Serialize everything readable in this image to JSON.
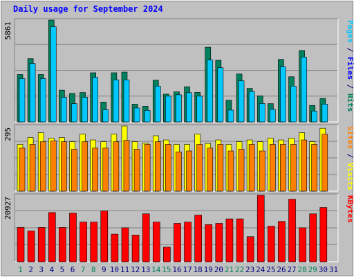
{
  "title": "Daily usage for September 2024",
  "colors": {
    "background": "#c0c0c0",
    "title": "#0000ff",
    "hits": "#00805c",
    "files": "#00c8ff",
    "pages": "#00c8ff",
    "visits": "#ffff00",
    "sites": "#ff8000",
    "kbytes": "#ff0000",
    "day_weekday": "#000080",
    "day_weekend": "#00805c"
  },
  "chart_data": [
    {
      "type": "bar",
      "name": "hits-files-pages",
      "ymax_label": "5861",
      "ylim": [
        0,
        5861
      ],
      "right_label_parts": [
        {
          "text": "Pages",
          "color": "#00c8ff"
        },
        {
          "text": " / ",
          "color": "#000080"
        },
        {
          "text": "Files",
          "color": "#0000ff"
        },
        {
          "text": " / ",
          "color": "#000080"
        },
        {
          "text": "Hits",
          "color": "#00805c"
        }
      ],
      "categories": [
        1,
        2,
        3,
        4,
        5,
        6,
        7,
        8,
        9,
        10,
        11,
        12,
        13,
        14,
        15,
        16,
        17,
        18,
        19,
        20,
        21,
        22,
        23,
        24,
        25,
        26,
        27,
        28,
        29,
        30
      ],
      "series": [
        {
          "name": "Hits",
          "values": [
            2730,
            3640,
            2730,
            5861,
            1830,
            1640,
            1690,
            2830,
            1140,
            2830,
            2870,
            1020,
            900,
            2400,
            1600,
            1730,
            2020,
            1700,
            4300,
            3550,
            1250,
            2760,
            1930,
            1500,
            1050,
            3600,
            2600,
            4110,
            950,
            1350
          ]
        },
        {
          "name": "Files",
          "values": [
            2490,
            3360,
            2490,
            5480,
            1420,
            1050,
            1420,
            2560,
            700,
            2420,
            2420,
            800,
            660,
            2060,
            1480,
            1560,
            1680,
            1480,
            3560,
            3120,
            680,
            2370,
            1750,
            1060,
            720,
            3170,
            2060,
            3730,
            620,
            1020
          ]
        }
      ]
    },
    {
      "type": "bar",
      "name": "visits-sites",
      "ymax_label": "295",
      "ylim": [
        0,
        295
      ],
      "right_label_parts": [
        {
          "text": "Sites",
          "color": "#ff8000"
        },
        {
          "text": " / ",
          "color": "#000080"
        },
        {
          "text": "Visits",
          "color": "#ffff00"
        }
      ],
      "categories": [
        1,
        2,
        3,
        4,
        5,
        6,
        7,
        8,
        9,
        10,
        11,
        12,
        13,
        14,
        15,
        16,
        17,
        18,
        19,
        20,
        21,
        22,
        23,
        24,
        25,
        26,
        27,
        28,
        29,
        30
      ],
      "series": [
        {
          "name": "Visits",
          "values": [
            212,
            243,
            265,
            240,
            243,
            224,
            258,
            232,
            224,
            258,
            295,
            224,
            217,
            251,
            232,
            212,
            212,
            258,
            216,
            232,
            212,
            224,
            232,
            224,
            240,
            232,
            240,
            265,
            224,
            285
          ]
        },
        {
          "name": "Sites",
          "values": [
            195,
            212,
            224,
            228,
            224,
            190,
            224,
            195,
            195,
            224,
            230,
            190,
            212,
            224,
            212,
            178,
            182,
            212,
            195,
            212,
            182,
            190,
            212,
            182,
            212,
            212,
            212,
            232,
            212,
            258
          ]
        }
      ]
    },
    {
      "type": "bar",
      "name": "kbytes",
      "ymax_label": "20927",
      "ylim": [
        0,
        20927
      ],
      "right_label_parts": [
        {
          "text": "KBytes",
          "color": "#ff0000"
        }
      ],
      "categories": [
        1,
        2,
        3,
        4,
        5,
        6,
        7,
        8,
        9,
        10,
        11,
        12,
        13,
        14,
        15,
        16,
        17,
        18,
        19,
        20,
        21,
        22,
        23,
        24,
        25,
        26,
        27,
        28,
        29,
        30
      ],
      "series": [
        {
          "name": "KBytes",
          "values": [
            10800,
            9700,
            10800,
            15500,
            10800,
            15300,
            12500,
            12500,
            16000,
            8700,
            10700,
            8400,
            15100,
            12500,
            4600,
            12100,
            12500,
            14700,
            11700,
            12100,
            13500,
            13500,
            7900,
            20927,
            11200,
            12700,
            19700,
            10700,
            15100,
            17100
          ]
        }
      ]
    }
  ],
  "x_axis": {
    "labels": [
      "1",
      "2",
      "3",
      "4",
      "5",
      "6",
      "7",
      "8",
      "9",
      "10",
      "11",
      "12",
      "13",
      "14",
      "15",
      "16",
      "17",
      "18",
      "19",
      "20",
      "21",
      "22",
      "23",
      "24",
      "25",
      "26",
      "27",
      "28",
      "29",
      "30",
      "31"
    ],
    "weekend_days": [
      1,
      7,
      8,
      14,
      15,
      21,
      22,
      28,
      29
    ]
  }
}
